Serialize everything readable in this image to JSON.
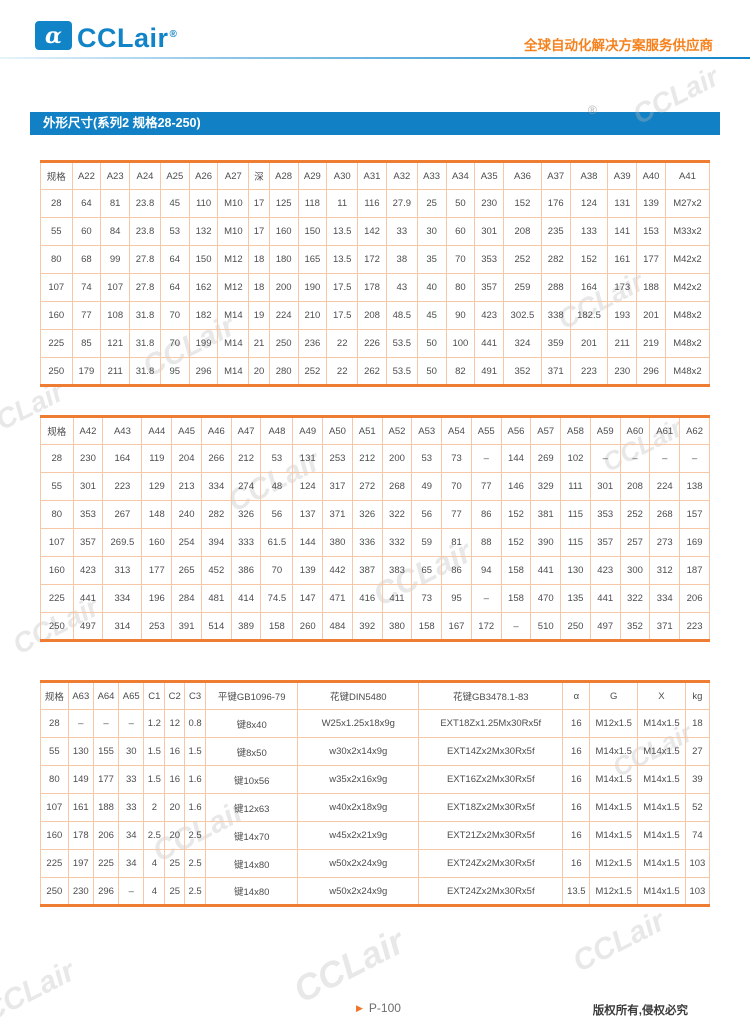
{
  "header": {
    "brand": "CCLair",
    "logo_glyph": "α",
    "registered": "®",
    "slogan": "全球自动化解决方案服务供应商"
  },
  "title_bar": "外形尺寸(系列2 规格28-250)",
  "registered_watermark": "®",
  "watermark": "CCLair",
  "tables": [
    {
      "headers": [
        "规格",
        "A22",
        "A23",
        "A24",
        "A25",
        "A26",
        "A27",
        "深",
        "A28",
        "A29",
        "A30",
        "A31",
        "A32",
        "A33",
        "A34",
        "A35",
        "A36",
        "A37",
        "A38",
        "A39",
        "A40",
        "A41"
      ],
      "rows": [
        [
          "28",
          "64",
          "81",
          "23.8",
          "45",
          "110",
          "M10",
          "17",
          "125",
          "118",
          "11",
          "116",
          "27.9",
          "25",
          "50",
          "230",
          "152",
          "176",
          "124",
          "131",
          "139",
          "M27x2"
        ],
        [
          "55",
          "60",
          "84",
          "23.8",
          "53",
          "132",
          "M10",
          "17",
          "160",
          "150",
          "13.5",
          "142",
          "33",
          "30",
          "60",
          "301",
          "208",
          "235",
          "133",
          "141",
          "153",
          "M33x2"
        ],
        [
          "80",
          "68",
          "99",
          "27.8",
          "64",
          "150",
          "M12",
          "18",
          "180",
          "165",
          "13.5",
          "172",
          "38",
          "35",
          "70",
          "353",
          "252",
          "282",
          "152",
          "161",
          "177",
          "M42x2"
        ],
        [
          "107",
          "74",
          "107",
          "27.8",
          "64",
          "162",
          "M12",
          "18",
          "200",
          "190",
          "17.5",
          "178",
          "43",
          "40",
          "80",
          "357",
          "259",
          "288",
          "164",
          "173",
          "188",
          "M42x2"
        ],
        [
          "160",
          "77",
          "108",
          "31.8",
          "70",
          "182",
          "M14",
          "19",
          "224",
          "210",
          "17.5",
          "208",
          "48.5",
          "45",
          "90",
          "423",
          "302.5",
          "338",
          "182.5",
          "193",
          "201",
          "M48x2"
        ],
        [
          "225",
          "85",
          "121",
          "31.8",
          "70",
          "199",
          "M14",
          "21",
          "250",
          "236",
          "22",
          "226",
          "53.5",
          "50",
          "100",
          "441",
          "324",
          "359",
          "201",
          "211",
          "219",
          "M48x2"
        ],
        [
          "250",
          "179",
          "211",
          "31.8",
          "95",
          "296",
          "M14",
          "20",
          "280",
          "252",
          "22",
          "262",
          "53.5",
          "50",
          "82",
          "491",
          "352",
          "371",
          "223",
          "230",
          "296",
          "M48x2"
        ]
      ]
    },
    {
      "headers": [
        "规格",
        "A42",
        "A43",
        "A44",
        "A45",
        "A46",
        "A47",
        "A48",
        "A49",
        "A50",
        "A51",
        "A52",
        "A53",
        "A54",
        "A55",
        "A56",
        "A57",
        "A58",
        "A59",
        "A60",
        "A61",
        "A62"
      ],
      "rows": [
        [
          "28",
          "230",
          "164",
          "119",
          "204",
          "266",
          "212",
          "53",
          "131",
          "253",
          "212",
          "200",
          "53",
          "73",
          "–",
          "144",
          "269",
          "102",
          "–",
          "–",
          "–",
          "–"
        ],
        [
          "55",
          "301",
          "223",
          "129",
          "213",
          "334",
          "274",
          "48",
          "124",
          "317",
          "272",
          "268",
          "49",
          "70",
          "77",
          "146",
          "329",
          "111",
          "301",
          "208",
          "224",
          "138"
        ],
        [
          "80",
          "353",
          "267",
          "148",
          "240",
          "282",
          "326",
          "56",
          "137",
          "371",
          "326",
          "322",
          "56",
          "77",
          "86",
          "152",
          "381",
          "115",
          "353",
          "252",
          "268",
          "157"
        ],
        [
          "107",
          "357",
          "269.5",
          "160",
          "254",
          "394",
          "333",
          "61.5",
          "144",
          "380",
          "336",
          "332",
          "59",
          "81",
          "88",
          "152",
          "390",
          "115",
          "357",
          "257",
          "273",
          "169"
        ],
        [
          "160",
          "423",
          "313",
          "177",
          "265",
          "452",
          "386",
          "70",
          "139",
          "442",
          "387",
          "383",
          "65",
          "86",
          "94",
          "158",
          "441",
          "130",
          "423",
          "300",
          "312",
          "187"
        ],
        [
          "225",
          "441",
          "334",
          "196",
          "284",
          "481",
          "414",
          "74.5",
          "147",
          "471",
          "416",
          "411",
          "73",
          "95",
          "–",
          "158",
          "470",
          "135",
          "441",
          "322",
          "334",
          "206"
        ],
        [
          "250",
          "497",
          "314",
          "253",
          "391",
          "514",
          "389",
          "158",
          "260",
          "484",
          "392",
          "380",
          "158",
          "167",
          "172",
          "–",
          "510",
          "250",
          "497",
          "352",
          "371",
          "223"
        ]
      ]
    },
    {
      "headers": [
        "规格",
        "A63",
        "A64",
        "A65",
        "C1",
        "C2",
        "C3",
        "平键GB1096-79",
        "花键DIN5480",
        "花键GB3478.1-83",
        "α",
        "G",
        "X",
        "kg"
      ],
      "rows": [
        [
          "28",
          "–",
          "–",
          "–",
          "1.2",
          "12",
          "0.8",
          "键8x40",
          "W25x1.25x18x9g",
          "EXT18Zx1.25Mx30Rx5f",
          "16",
          "M12x1.5",
          "M14x1.5",
          "18"
        ],
        [
          "55",
          "130",
          "155",
          "30",
          "1.5",
          "16",
          "1.5",
          "键8x50",
          "w30x2x14x9g",
          "EXT14Zx2Mx30Rx5f",
          "16",
          "M14x1.5",
          "M14x1.5",
          "27"
        ],
        [
          "80",
          "149",
          "177",
          "33",
          "1.5",
          "16",
          "1.6",
          "键10x56",
          "w35x2x16x9g",
          "EXT16Zx2Mx30Rx5f",
          "16",
          "M14x1.5",
          "M14x1.5",
          "39"
        ],
        [
          "107",
          "161",
          "188",
          "33",
          "2",
          "20",
          "1.6",
          "键12x63",
          "w40x2x18x9g",
          "EXT18Zx2Mx30Rx5f",
          "16",
          "M14x1.5",
          "M14x1.5",
          "52"
        ],
        [
          "160",
          "178",
          "206",
          "34",
          "2.5",
          "20",
          "2.5",
          "键14x70",
          "w45x2x21x9g",
          "EXT21Zx2Mx30Rx5f",
          "16",
          "M14x1.5",
          "M14x1.5",
          "74"
        ],
        [
          "225",
          "197",
          "225",
          "34",
          "4",
          "25",
          "2.5",
          "键14x80",
          "w50x2x24x9g",
          "EXT24Zx2Mx30Rx5f",
          "16",
          "M12x1.5",
          "M14x1.5",
          "103"
        ],
        [
          "250",
          "230",
          "296",
          "–",
          "4",
          "25",
          "2.5",
          "键14x80",
          "w50x2x24x9g",
          "EXT24Zx2Mx30Rx5f",
          "13.5",
          "M12x1.5",
          "M14x1.5",
          "103"
        ]
      ]
    }
  ],
  "footer": {
    "page": "P-100",
    "copyright": "版权所有,侵权必究"
  }
}
